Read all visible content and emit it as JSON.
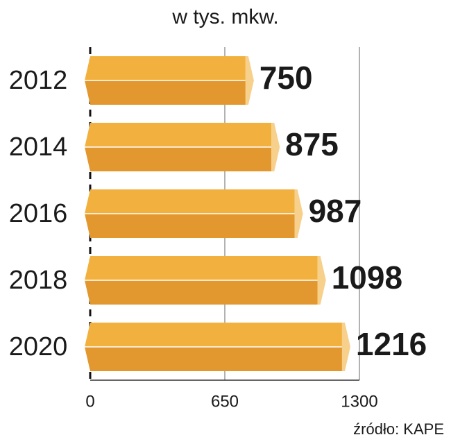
{
  "chart_data": {
    "type": "bar",
    "orientation": "horizontal",
    "title": "w tys. mkw.",
    "categories": [
      "2012",
      "2014",
      "2016",
      "2018",
      "2020"
    ],
    "values": [
      750,
      875,
      987,
      1098,
      1216
    ],
    "color": "#f2b13f",
    "xlim": [
      0,
      1300
    ],
    "xticks": [
      0,
      650,
      1300
    ],
    "grid": true,
    "source": "źródło: KAPE"
  }
}
